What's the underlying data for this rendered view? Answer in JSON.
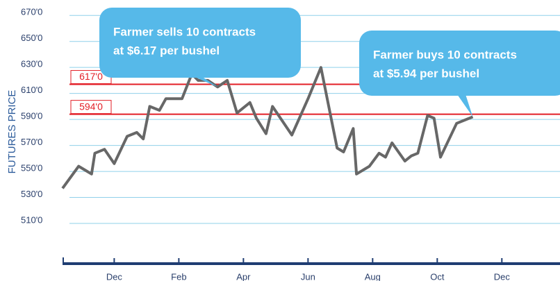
{
  "chart_data": {
    "type": "line",
    "y_axis_label": "FUTURES PRICE",
    "x": [
      -1.6,
      -1.1,
      -0.7,
      -0.6,
      -0.3,
      0,
      0.4,
      0.7,
      0.9,
      1.1,
      1.4,
      1.6,
      2.1,
      2.4,
      2.6,
      2.9,
      3.2,
      3.5,
      3.8,
      4.2,
      4.4,
      4.7,
      4.9,
      5.5,
      6.0,
      6.4,
      6.9,
      7.1,
      7.4,
      7.5,
      7.9,
      8.2,
      8.4,
      8.6,
      9.0,
      9.2,
      9.4,
      9.7,
      9.9,
      10.1,
      10.6,
      10.9,
      11.1
    ],
    "series": [
      {
        "color": "#676767",
        "values": [
          537,
          554,
          548,
          564,
          567,
          556,
          577,
          580,
          575,
          600,
          597,
          606,
          606,
          625,
          620,
          620,
          615,
          620,
          595,
          603,
          591,
          579,
          600,
          578,
          606,
          630,
          568,
          565,
          583,
          548,
          554,
          564,
          561,
          572,
          558,
          562,
          564,
          593,
          591,
          561,
          587,
          590,
          592
        ]
      }
    ],
    "xlim": [
      -1.6,
      13.8
    ],
    "xticks": [
      {
        "value": 0,
        "label": "Dec"
      },
      {
        "value": 2,
        "label": "Feb"
      },
      {
        "value": 4,
        "label": "Apr"
      },
      {
        "value": 6,
        "label": "Jun"
      },
      {
        "value": 8,
        "label": "Aug"
      },
      {
        "value": 10,
        "label": "Oct"
      },
      {
        "value": 12,
        "label": "Dec"
      }
    ],
    "ylim": [
      494,
      676
    ],
    "yticks": [
      {
        "value": 510,
        "label": "510'0"
      },
      {
        "value": 530,
        "label": "530'0"
      },
      {
        "value": 550,
        "label": "550'0"
      },
      {
        "value": 570,
        "label": "570'0"
      },
      {
        "value": 590,
        "label": "590'0"
      },
      {
        "value": 610,
        "label": "610'0"
      },
      {
        "value": 630,
        "label": "630'0"
      },
      {
        "value": 650,
        "label": "650'0"
      },
      {
        "value": 670,
        "label": "670'0"
      }
    ],
    "grid": true,
    "grid_color": "#8fd0ea",
    "reference_lines": [
      {
        "value": 617,
        "label": "617'0",
        "color": "#e31e26"
      },
      {
        "value": 594,
        "label": "594'0",
        "color": "#e31e26"
      }
    ],
    "annotations": [
      {
        "text": [
          "Farmer sells 10 contracts",
          "at $6.17 per bushel"
        ],
        "color": "#56b9e9"
      },
      {
        "text": [
          "Farmer buys 10 contracts",
          "at $5.94 per bushel"
        ],
        "color": "#56b9e9"
      }
    ]
  }
}
